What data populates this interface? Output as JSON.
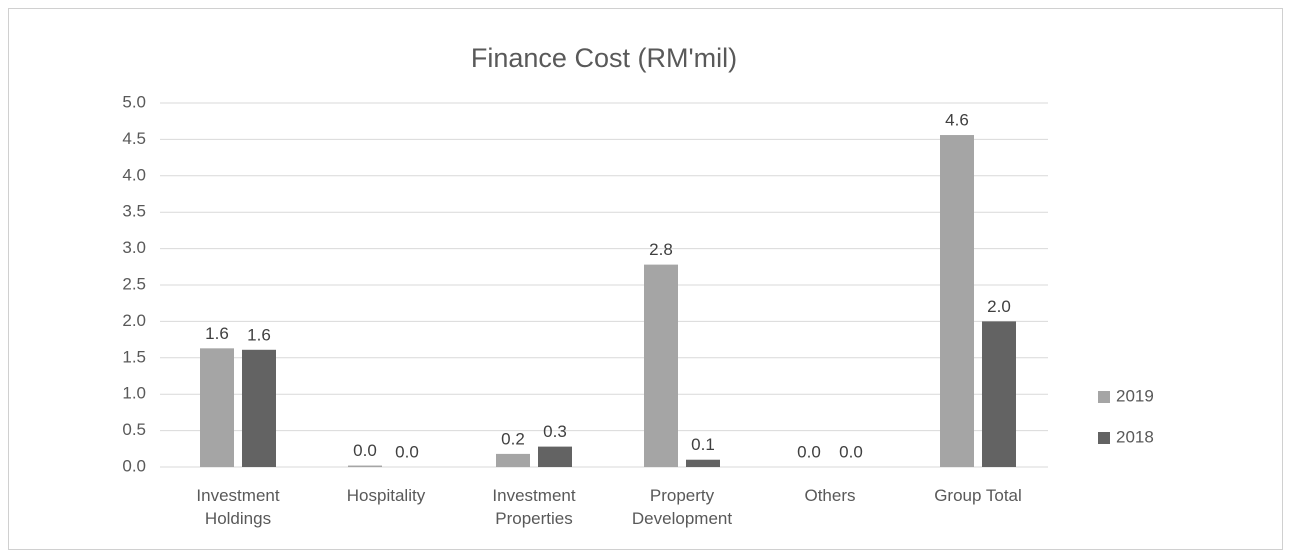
{
  "chart_data": {
    "type": "bar",
    "title": "Finance Cost (RM'mil)",
    "categories": [
      "Investment Holdings",
      "Hospitality",
      "Investment Properties",
      "Property Development",
      "Others",
      "Group Total"
    ],
    "series": [
      {
        "name": "2019",
        "color": "#a5a5a5",
        "values": [
          1.63,
          0.02,
          0.18,
          2.78,
          0.0,
          4.56
        ],
        "value_labels": [
          "1.6",
          "0.0",
          "0.2",
          "2.8",
          "0.0",
          "4.6"
        ]
      },
      {
        "name": "2018",
        "color": "#636363",
        "values": [
          1.61,
          0.0,
          0.28,
          0.1,
          0.0,
          2.0
        ],
        "value_labels": [
          "1.6",
          "0.0",
          "0.3",
          "0.1",
          "0.0",
          "2.0"
        ]
      }
    ],
    "ylim": [
      0,
      5
    ],
    "yticks": [
      {
        "value": 0,
        "label": "0.0"
      },
      0.5,
      {
        "value": 1,
        "label": "1.0"
      },
      1.5,
      {
        "value": 2,
        "label": "2.0"
      },
      2.5,
      {
        "value": 3,
        "label": "3.0"
      },
      3.5,
      {
        "value": 4,
        "label": "4.0"
      },
      4.5,
      {
        "value": 5,
        "label": "5.0"
      }
    ],
    "grid": true,
    "legend": "right"
  }
}
